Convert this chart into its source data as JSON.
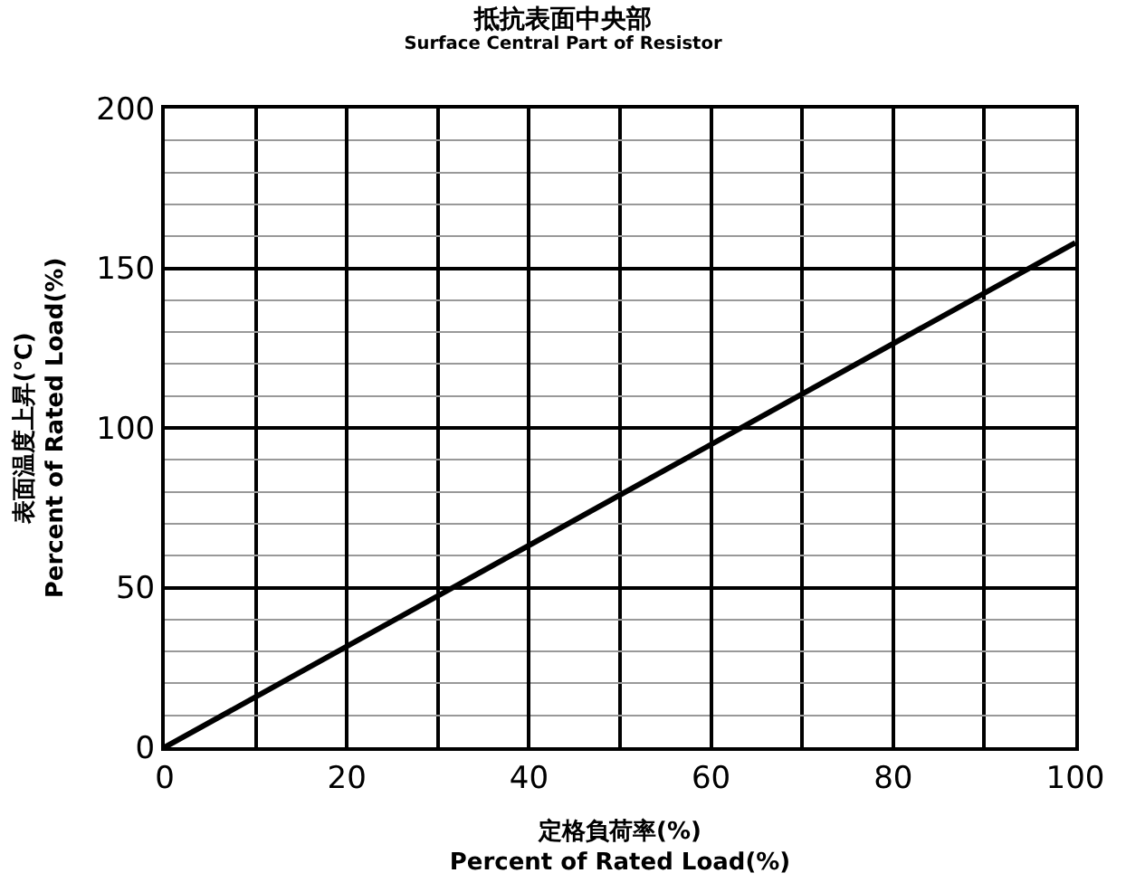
{
  "chart_data": {
    "type": "line",
    "title": "抵抗表面中央部",
    "subtitle": "Surface Central Part of Resistor",
    "xlabel": "定格負荷率(%)\nPercent of Rated Load(%)",
    "ylabel": "表面温度上昇(℃)\nPercent of Rated Load(%)",
    "x": [
      0,
      100
    ],
    "series": [
      {
        "color": "#000000",
        "values": [
          0,
          158
        ]
      }
    ],
    "xlim": [
      0,
      100
    ],
    "xticks": [
      0,
      20,
      40,
      60,
      80,
      100,
      {
        "value": 10,
        "label": null
      },
      {
        "value": 30,
        "label": null
      },
      {
        "value": 50,
        "label": null
      },
      {
        "value": 70,
        "label": null
      },
      {
        "value": 90,
        "label": null
      }
    ],
    "ylim": [
      0,
      200
    ],
    "yticks": [
      0,
      50,
      100,
      150,
      200,
      {
        "value": 10,
        "label": null
      },
      {
        "value": 20,
        "label": null
      },
      {
        "value": 30,
        "label": null
      },
      {
        "value": 40,
        "label": null
      },
      {
        "value": 60,
        "label": null
      },
      {
        "value": 70,
        "label": null
      },
      {
        "value": 80,
        "label": null
      },
      {
        "value": 90,
        "label": null
      },
      {
        "value": 110,
        "label": null
      },
      {
        "value": 120,
        "label": null
      },
      {
        "value": 130,
        "label": null
      },
      {
        "value": 140,
        "label": null
      },
      {
        "value": 160,
        "label": null
      },
      {
        "value": 170,
        "label": null
      },
      {
        "value": 180,
        "label": null
      },
      {
        "value": 190,
        "label": null
      }
    ],
    "grid": true,
    "legend": false,
    "marker": "none",
    "line_style": "solid"
  }
}
